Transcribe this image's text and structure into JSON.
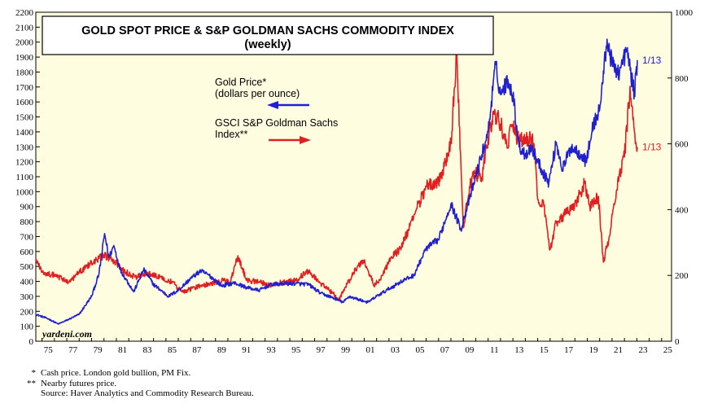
{
  "chart_data": {
    "type": "line",
    "title": "GOLD SPOT PRICE & S&P GOLDMAN SACHS COMMODITY INDEX",
    "subtitle": "(weekly)",
    "x_range": [
      1974.5,
      2025.8
    ],
    "x_tick_labels": [
      "75",
      "77",
      "79",
      "81",
      "83",
      "85",
      "87",
      "89",
      "91",
      "93",
      "95",
      "97",
      "99",
      "01",
      "03",
      "05",
      "07",
      "09",
      "11",
      "13",
      "15",
      "17",
      "19",
      "21",
      "23",
      "25"
    ],
    "y_left": {
      "range": [
        0,
        2200
      ],
      "step": 100,
      "label": "Gold Price* (dollars per ounce)"
    },
    "y_right": {
      "range": [
        0,
        1000
      ],
      "step": 200,
      "label": "GSCI S&P Goldman Sachs Index**"
    },
    "series": [
      {
        "name": "Gold Price*",
        "unit": "dollars per ounce",
        "axis": "left",
        "color": "#2020d0",
        "end_label": "1/13",
        "points": [
          [
            1974.5,
            180
          ],
          [
            1975.5,
            150
          ],
          [
            1976.3,
            115
          ],
          [
            1977.0,
            140
          ],
          [
            1978.0,
            180
          ],
          [
            1979.0,
            300
          ],
          [
            1979.6,
            450
          ],
          [
            1980.05,
            720
          ],
          [
            1980.4,
            560
          ],
          [
            1980.8,
            640
          ],
          [
            1981.3,
            480
          ],
          [
            1982.4,
            330
          ],
          [
            1983.2,
            480
          ],
          [
            1984.0,
            380
          ],
          [
            1985.2,
            300
          ],
          [
            1986.0,
            340
          ],
          [
            1987.0,
            420
          ],
          [
            1987.8,
            470
          ],
          [
            1988.5,
            440
          ],
          [
            1989.5,
            370
          ],
          [
            1990.5,
            390
          ],
          [
            1991.5,
            360
          ],
          [
            1992.5,
            340
          ],
          [
            1993.5,
            380
          ],
          [
            1994.5,
            385
          ],
          [
            1995.5,
            385
          ],
          [
            1996.5,
            380
          ],
          [
            1997.5,
            320
          ],
          [
            1998.5,
            290
          ],
          [
            1999.3,
            260
          ],
          [
            1999.8,
            300
          ],
          [
            2000.5,
            280
          ],
          [
            2001.3,
            260
          ],
          [
            2002.0,
            300
          ],
          [
            2003.0,
            350
          ],
          [
            2004.0,
            400
          ],
          [
            2005.0,
            440
          ],
          [
            2006.0,
            620
          ],
          [
            2007.0,
            680
          ],
          [
            2008.0,
            920
          ],
          [
            2008.8,
            750
          ],
          [
            2009.5,
            950
          ],
          [
            2010.0,
            1100
          ],
          [
            2010.5,
            1250
          ],
          [
            2011.0,
            1400
          ],
          [
            2011.6,
            1850
          ],
          [
            2012.0,
            1650
          ],
          [
            2012.6,
            1750
          ],
          [
            2013.0,
            1650
          ],
          [
            2013.5,
            1300
          ],
          [
            2014.0,
            1250
          ],
          [
            2014.5,
            1300
          ],
          [
            2015.0,
            1200
          ],
          [
            2015.9,
            1060
          ],
          [
            2016.5,
            1330
          ],
          [
            2017.0,
            1150
          ],
          [
            2017.7,
            1300
          ],
          [
            2018.5,
            1250
          ],
          [
            2018.9,
            1200
          ],
          [
            2019.5,
            1450
          ],
          [
            2020.0,
            1550
          ],
          [
            2020.6,
            2020
          ],
          [
            2021.0,
            1850
          ],
          [
            2021.6,
            1800
          ],
          [
            2022.2,
            1950
          ],
          [
            2022.8,
            1650
          ],
          [
            2023.04,
            1880
          ]
        ]
      },
      {
        "name": "GSCI S&P Goldman Sachs Index**",
        "unit": "index",
        "axis": "right",
        "color": "#e02020",
        "end_label": "1/13",
        "points": [
          [
            1974.5,
            250
          ],
          [
            1975.0,
            210
          ],
          [
            1976.0,
            200
          ],
          [
            1977.2,
            180
          ],
          [
            1978.0,
            210
          ],
          [
            1979.0,
            240
          ],
          [
            1980.0,
            260
          ],
          [
            1980.6,
            250
          ],
          [
            1981.5,
            215
          ],
          [
            1982.5,
            195
          ],
          [
            1983.5,
            205
          ],
          [
            1984.5,
            195
          ],
          [
            1985.5,
            180
          ],
          [
            1986.3,
            150
          ],
          [
            1987.5,
            165
          ],
          [
            1988.5,
            175
          ],
          [
            1989.5,
            185
          ],
          [
            1990.2,
            180
          ],
          [
            1990.8,
            260
          ],
          [
            1991.5,
            185
          ],
          [
            1992.5,
            180
          ],
          [
            1993.5,
            170
          ],
          [
            1994.5,
            180
          ],
          [
            1995.5,
            185
          ],
          [
            1996.5,
            215
          ],
          [
            1997.5,
            175
          ],
          [
            1998.5,
            145
          ],
          [
            1998.95,
            125
          ],
          [
            1999.5,
            165
          ],
          [
            2000.5,
            230
          ],
          [
            2001.0,
            245
          ],
          [
            2001.8,
            170
          ],
          [
            2002.5,
            200
          ],
          [
            2003.0,
            245
          ],
          [
            2004.0,
            285
          ],
          [
            2005.0,
            380
          ],
          [
            2006.0,
            470
          ],
          [
            2007.0,
            480
          ],
          [
            2008.0,
            600
          ],
          [
            2008.45,
            875
          ],
          [
            2008.7,
            650
          ],
          [
            2009.0,
            345
          ],
          [
            2009.5,
            470
          ],
          [
            2010.0,
            510
          ],
          [
            2010.5,
            500
          ],
          [
            2011.0,
            620
          ],
          [
            2011.5,
            690
          ],
          [
            2012.0,
            660
          ],
          [
            2012.5,
            600
          ],
          [
            2013.0,
            650
          ],
          [
            2013.5,
            610
          ],
          [
            2014.0,
            620
          ],
          [
            2014.7,
            600
          ],
          [
            2015.0,
            430
          ],
          [
            2015.5,
            410
          ],
          [
            2016.0,
            280
          ],
          [
            2016.5,
            360
          ],
          [
            2017.0,
            380
          ],
          [
            2017.8,
            400
          ],
          [
            2018.8,
            480
          ],
          [
            2019.2,
            410
          ],
          [
            2019.9,
            440
          ],
          [
            2020.3,
            240
          ],
          [
            2020.8,
            320
          ],
          [
            2021.5,
            500
          ],
          [
            2022.0,
            560
          ],
          [
            2022.45,
            775
          ],
          [
            2022.8,
            640
          ],
          [
            2023.04,
            590
          ]
        ]
      }
    ],
    "legend": [
      {
        "label_lines": [
          "Gold Price*",
          "(dollars per ounce)"
        ],
        "arrow": "left",
        "color": "#2020d0"
      },
      {
        "label_lines": [
          "GSCI S&P Goldman Sachs",
          "Index**"
        ],
        "arrow": "right",
        "color": "#e02020"
      }
    ],
    "watermark": "yardeni.com",
    "plot_background": "#fffde0",
    "grid": false
  },
  "footnotes": {
    "note1_marker": "*",
    "note1_text": "Cash price. London gold bullion, PM Fix.",
    "note2_marker": "**",
    "note2_text": "Nearby futures price.",
    "source": "Source: Haver Analytics and Commodity Research Bureau."
  }
}
